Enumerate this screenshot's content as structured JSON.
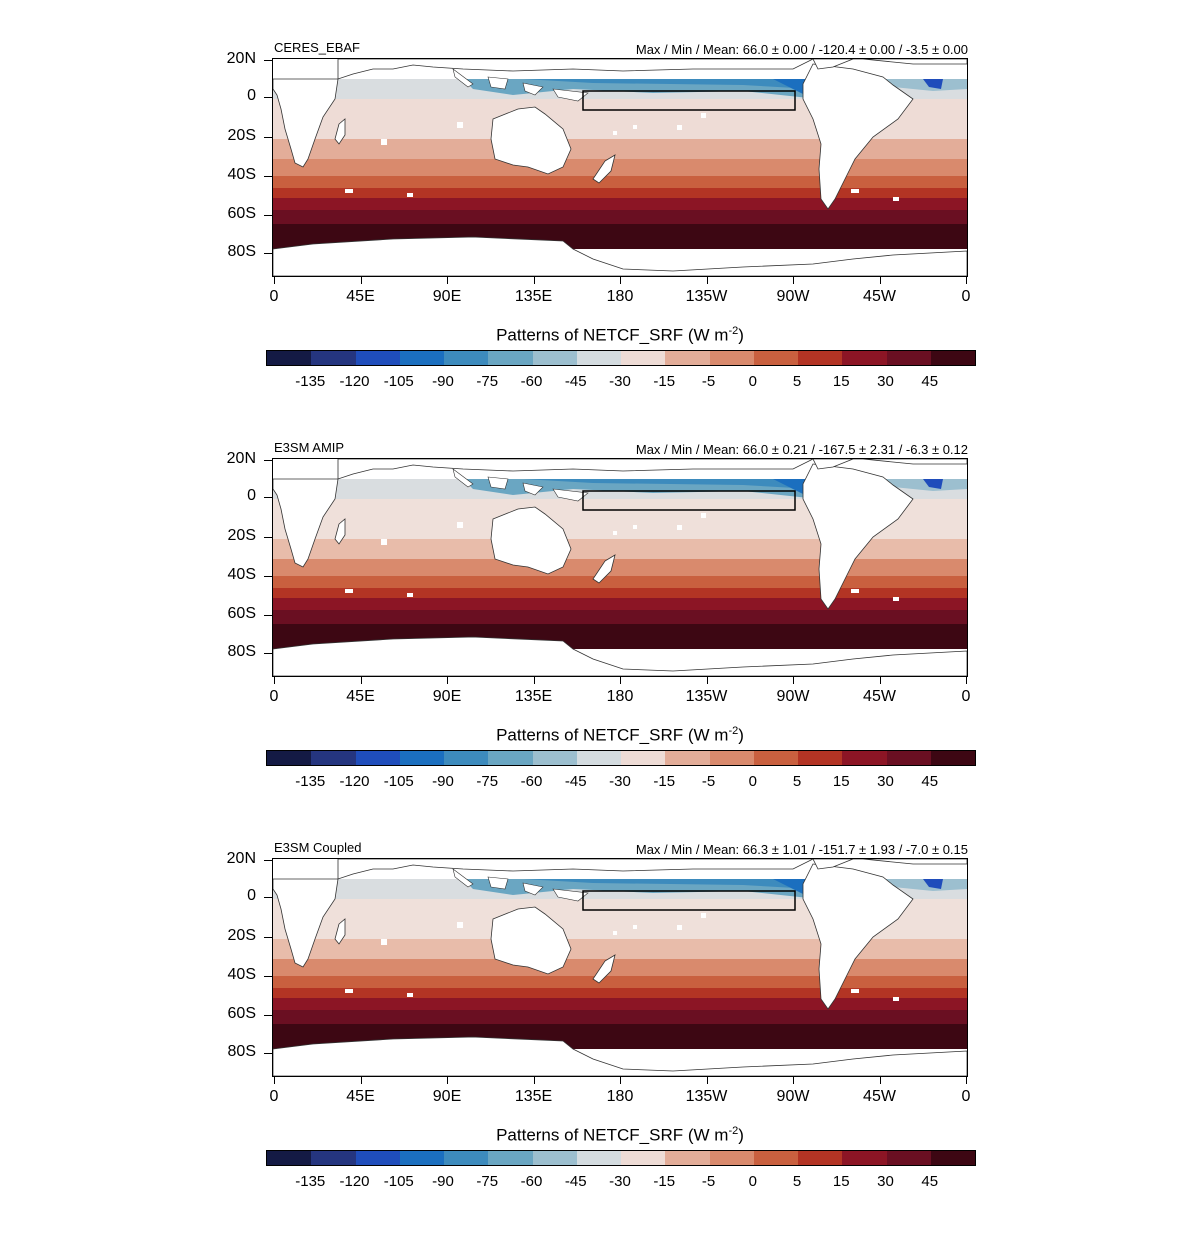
{
  "figure": {
    "colorbar_title": "Patterns of NETCF_SRF (W m",
    "colorbar_unit_exp": "-2",
    "colorbar_title_close": ")",
    "colorbar_levels": [
      "-135",
      "-120",
      "-105",
      "-90",
      "-75",
      "-60",
      "-45",
      "-30",
      "-15",
      "-5",
      "0",
      "5",
      "15",
      "30",
      "45"
    ],
    "colorbar_colors": [
      "#141a44",
      "#25357f",
      "#1f4dbb",
      "#1b6fbf",
      "#3d8bbd",
      "#6aa6c2",
      "#9cbfcf",
      "#d4dce0",
      "#eedcd6",
      "#e3ad99",
      "#d98a6d",
      "#c9603f",
      "#b33424",
      "#8c1525",
      "#6a0f22",
      "#3d0713"
    ],
    "lat_labels": [
      "20N",
      "0",
      "20S",
      "40S",
      "60S",
      "80S"
    ],
    "lon_labels": [
      "0",
      "45E",
      "90E",
      "135E",
      "180",
      "135W",
      "90W",
      "45W",
      "0"
    ]
  },
  "panels": [
    {
      "title": "CERES_EBAF",
      "stats": "Max / Min / Mean:  66.0 ± 0.00 / -120.4 ± 0.00 / -3.5 ± 0.00"
    },
    {
      "title": "E3SM AMIP",
      "stats": "Max / Min / Mean:  66.0 ± 0.21 / -167.5 ± 2.31 / -6.3 ± 0.12"
    },
    {
      "title": "E3SM Coupled",
      "stats": "Max / Min / Mean:  66.3 ± 1.01 / -151.7 ± 1.93 / -7.0 ± 0.15"
    }
  ]
}
